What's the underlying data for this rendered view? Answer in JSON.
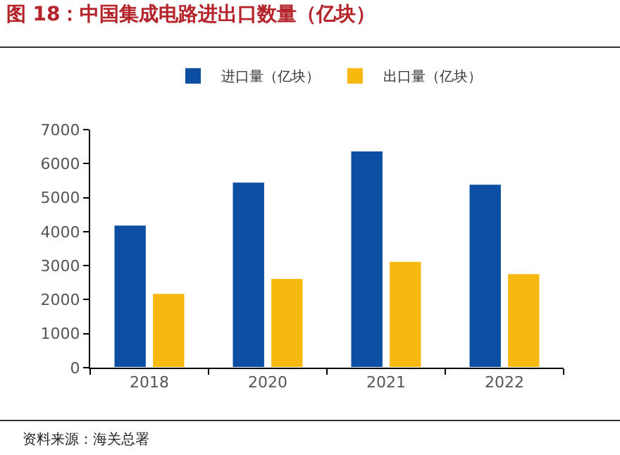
{
  "chart_data": {
    "type": "bar",
    "title": "图 18：中国集成电路进出口数量（亿块）",
    "categories": [
      "2018",
      "2020",
      "2021",
      "2022"
    ],
    "series": [
      {
        "name": "进口量（亿块）",
        "color": "#0b4ea2",
        "values": [
          4200,
          5460,
          6380,
          5400
        ]
      },
      {
        "name": "出口量（亿块）",
        "color": "#f7b90f",
        "values": [
          2190,
          2630,
          3130,
          2770
        ]
      }
    ],
    "ylim": [
      0,
      7000
    ],
    "yticks": [
      0,
      1000,
      2000,
      3000,
      4000,
      5000,
      6000,
      7000
    ],
    "grid": false,
    "legend": "top",
    "annotations": [
      "资料来源：海关总署"
    ]
  }
}
